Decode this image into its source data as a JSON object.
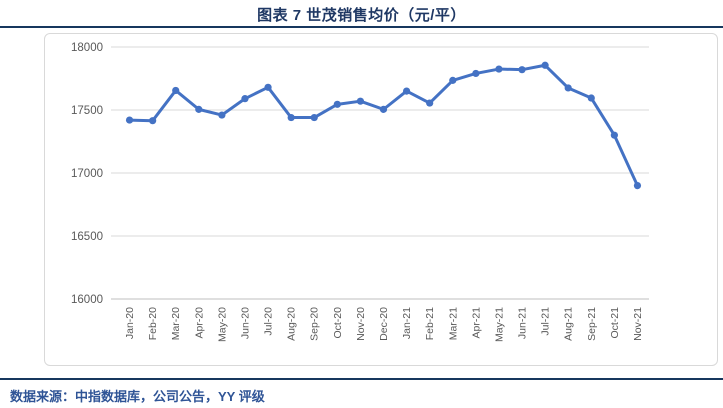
{
  "header": {
    "title": "图表 7  世茂销售均价（元/平）"
  },
  "footer": {
    "source": "数据来源：中指数据库，公司公告，YY 评级"
  },
  "colors": {
    "series_blue": "#4472C4",
    "title_navy": "#1F3864",
    "rule_navy": "#17375E",
    "footer_blue": "#2F5496",
    "gridline_gray": "#D9D9D9",
    "axis_line_gray": "#BFBFBF",
    "axis_text_gray": "#595959"
  },
  "chart_data": {
    "type": "line",
    "title": "图表 7  世茂销售均价（元/平）",
    "xlabel": "",
    "ylabel": "",
    "ylim": [
      16000,
      18000
    ],
    "yticks": [
      18000,
      17500,
      17000,
      16500,
      16000
    ],
    "grid": true,
    "legend_position": "none",
    "marker": "circle",
    "categories": [
      "Jan-20",
      "Feb-20",
      "Mar-20",
      "Apr-20",
      "May-20",
      "Jun-20",
      "Jul-20",
      "Aug-20",
      "Sep-20",
      "Oct-20",
      "Nov-20",
      "Dec-20",
      "Jan-21",
      "Feb-21",
      "Mar-21",
      "Apr-21",
      "May-21",
      "Jun-21",
      "Jul-21",
      "Aug-21",
      "Sep-21",
      "Oct-21",
      "Nov-21"
    ],
    "values": [
      17420,
      17415,
      17655,
      17505,
      17460,
      17590,
      17680,
      17440,
      17440,
      17545,
      17570,
      17505,
      17650,
      17555,
      17735,
      17790,
      17825,
      17820,
      17855,
      17675,
      17595,
      17300,
      16900
    ]
  }
}
